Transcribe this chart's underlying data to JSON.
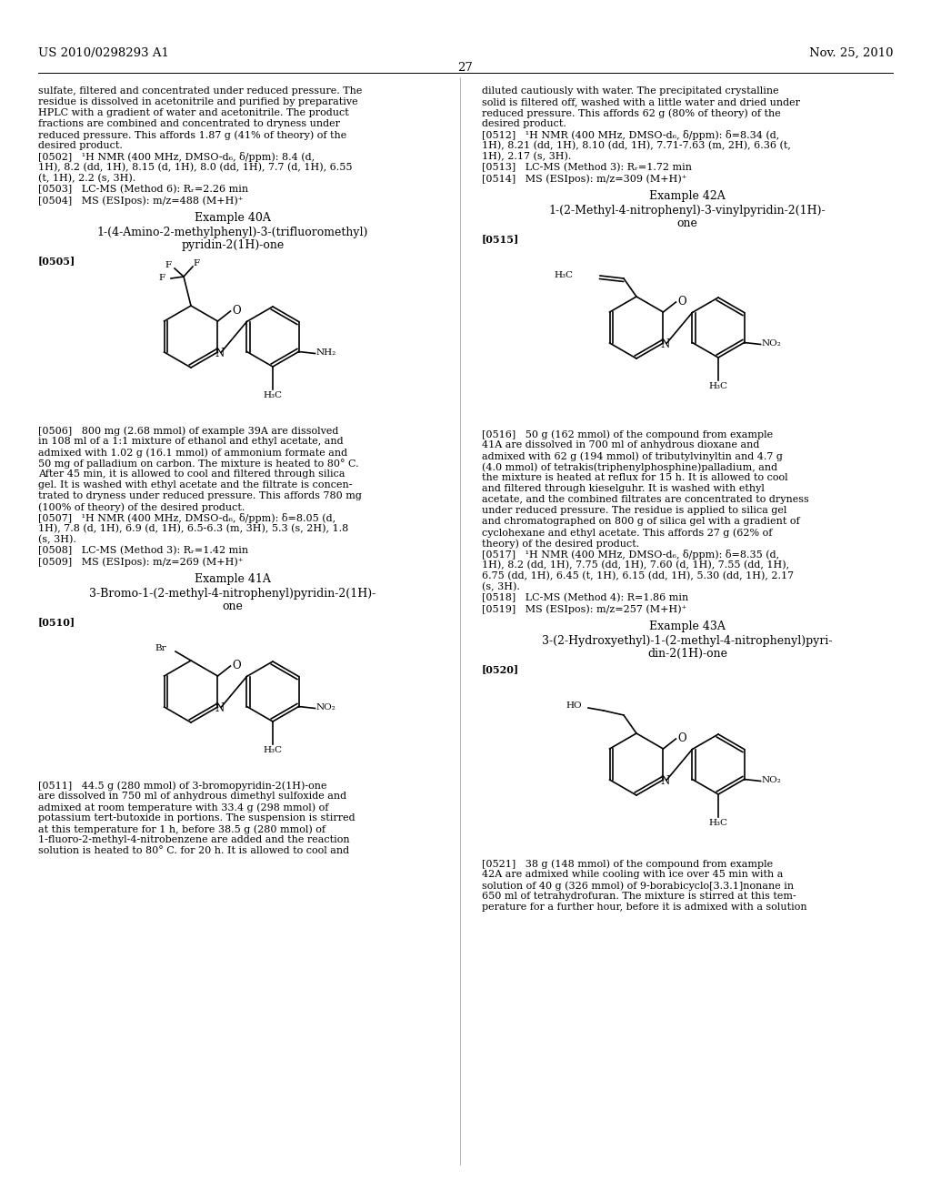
{
  "page_number": "27",
  "header_left": "US 2010/0298293 A1",
  "header_right": "Nov. 25, 2010",
  "background_color": "#ffffff",
  "text_color": "#000000",
  "body_fontsize": 8.0,
  "header_fontsize": 9.5,
  "label_fontsize": 8.0,
  "example_fontsize": 9.0
}
